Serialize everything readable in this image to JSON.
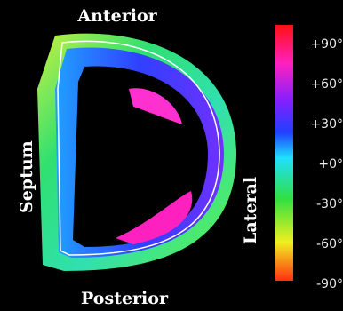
{
  "labels": {
    "top": "Anterior",
    "bottom": "Posterior",
    "left": "Septum",
    "right": "Lateral"
  },
  "colorbar": {
    "ticks": [
      "+90°",
      "+60°",
      "+30°",
      "+0°",
      "-30°",
      "-60°",
      "-90°"
    ]
  }
}
